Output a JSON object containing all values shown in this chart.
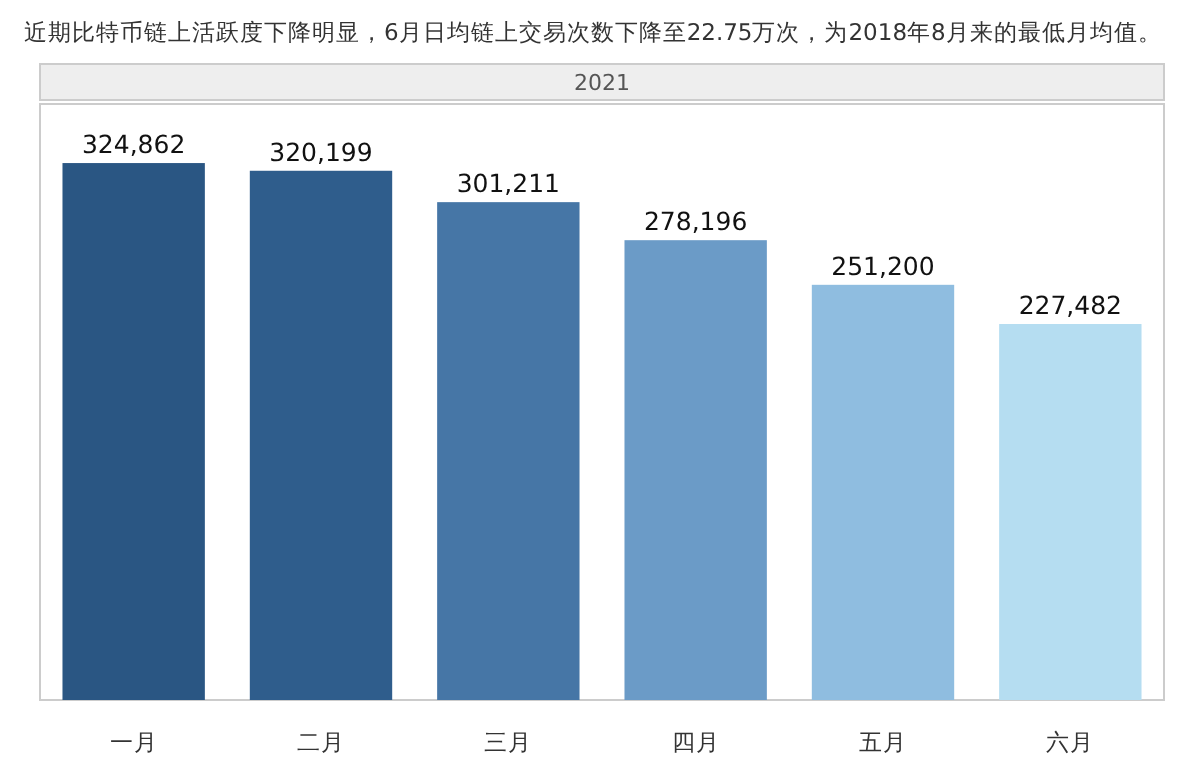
{
  "chart_data": {
    "type": "bar",
    "title": "近期比特币链上活跃度下降明显，6月日均链上交易次数下降至22.75万次，为2018年8月来的最低月均值。",
    "subtitle": "2021",
    "categories": [
      "一月",
      "二月",
      "三月",
      "四月",
      "五月",
      "六月"
    ],
    "values": [
      324862,
      320199,
      301211,
      278196,
      251200,
      227482
    ],
    "value_labels": [
      "324,862",
      "320,199",
      "301,211",
      "278,196",
      "251,200",
      "227,482"
    ],
    "colors": [
      "#2a5683",
      "#2f5d8c",
      "#4676a6",
      "#6b9bc7",
      "#8fbde0",
      "#b5ddf1"
    ]
  }
}
